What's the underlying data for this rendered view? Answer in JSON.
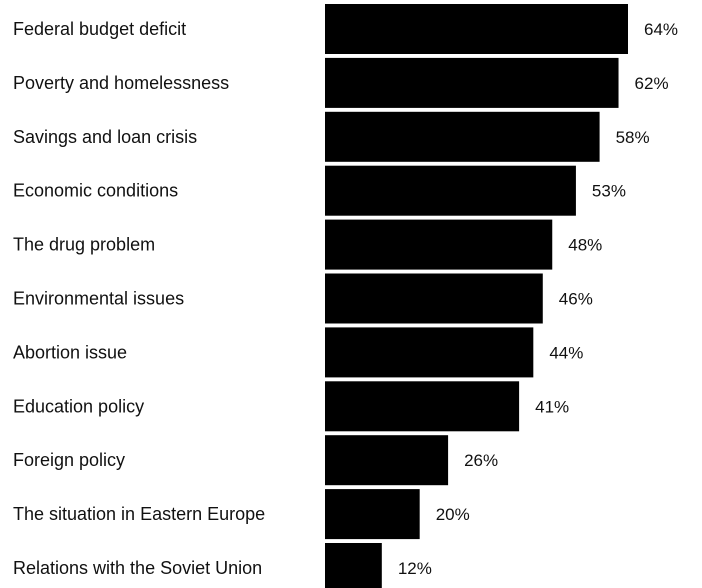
{
  "chart_data": {
    "type": "bar",
    "orientation": "horizontal",
    "categories": [
      "Federal budget deficit",
      "Poverty and homelessness",
      "Savings and loan crisis",
      "Economic conditions",
      "The drug problem",
      "Environmental issues",
      "Abortion issue",
      "Education policy",
      "Foreign policy",
      "The situation in Eastern Europe",
      "Relations with the Soviet Union"
    ],
    "values": [
      64,
      62,
      58,
      53,
      48,
      46,
      44,
      41,
      26,
      20,
      12
    ],
    "value_labels": [
      "64%",
      "62%",
      "58%",
      "53%",
      "48%",
      "46%",
      "44%",
      "41%",
      "26%",
      "20%",
      "12%"
    ],
    "unit": "%",
    "xlim": [
      0,
      64
    ],
    "bar_color": "#000000",
    "grid": false,
    "legend": "none"
  }
}
